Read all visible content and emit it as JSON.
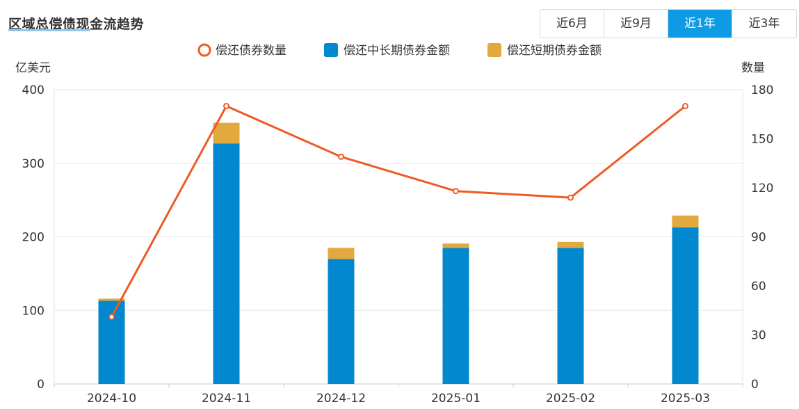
{
  "header": {
    "title": "区域总偿债现金流趋势"
  },
  "tabs": [
    {
      "label": "近6月",
      "active": false
    },
    {
      "label": "近9月",
      "active": false
    },
    {
      "label": "近1年",
      "active": true
    },
    {
      "label": "近3年",
      "active": false
    }
  ],
  "colors": {
    "long_term": "#0288cf",
    "short_term": "#e4a93e",
    "count_line": "#ee5a24",
    "active_tab": "#0d9be5"
  },
  "chart_data": {
    "type": "bar",
    "categories": [
      "2024-10",
      "2024-11",
      "2024-12",
      "2025-01",
      "2025-02",
      "2025-03"
    ],
    "y_left_label": "亿美元",
    "y_right_label": "数量",
    "y_left_ticks": [
      "0",
      "100",
      "200",
      "300",
      "400"
    ],
    "y_right_ticks": [
      "0",
      "30",
      "60",
      "90",
      "120",
      "150",
      "180"
    ],
    "ylim_left": [
      0,
      400
    ],
    "ylim_right": [
      0,
      180
    ],
    "legend": [
      "偿还债券数量",
      "偿还中长期债券金额",
      "偿还短期债券金额"
    ],
    "legend_position": "top-center",
    "grid": true,
    "series": [
      {
        "name": "偿还中长期债券金额",
        "type": "bar",
        "stack": "amount",
        "axis": "left",
        "values": [
          113,
          327,
          170,
          185,
          185,
          213
        ]
      },
      {
        "name": "偿还短期债券金额",
        "type": "bar",
        "stack": "amount",
        "axis": "left",
        "values": [
          3,
          28,
          15,
          6,
          8,
          16
        ]
      },
      {
        "name": "偿还债券数量",
        "type": "line",
        "axis": "right",
        "values": [
          41,
          170,
          139,
          118,
          114,
          170
        ]
      }
    ]
  }
}
